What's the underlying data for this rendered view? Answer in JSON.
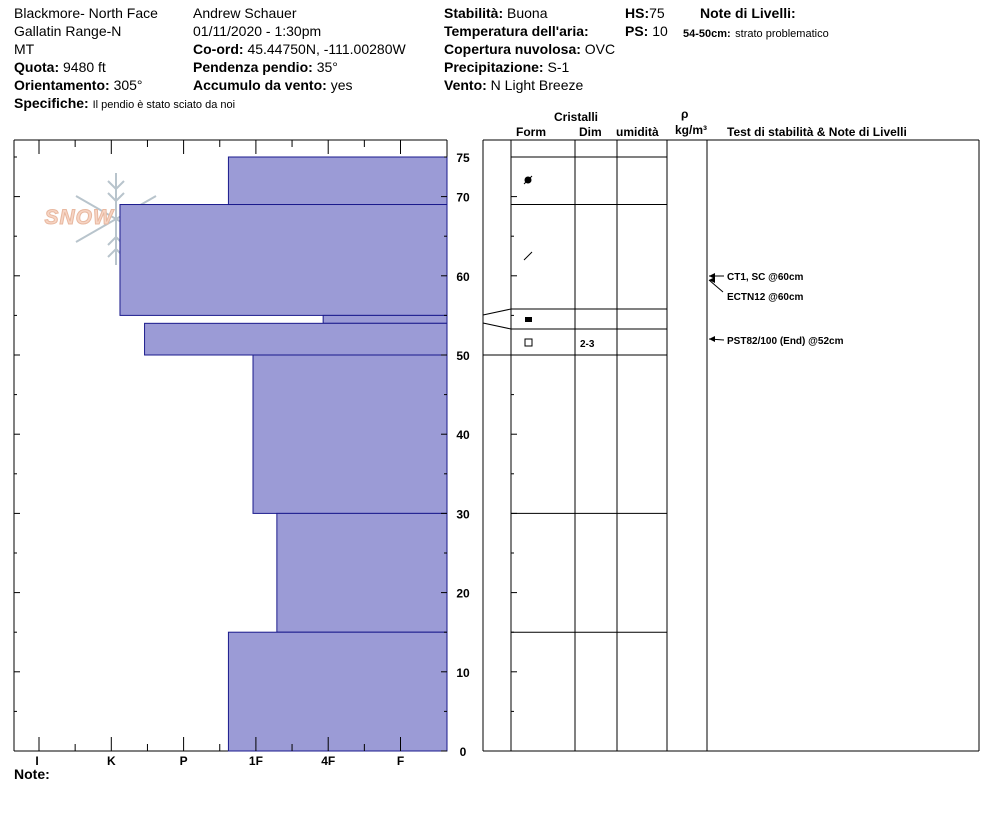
{
  "header": {
    "location": "Blackmore- North Face",
    "range": "Gallatin Range-N",
    "state": "MT",
    "elevation_label": "Quota:",
    "elevation_value": "9480 ft",
    "aspect_label": "Orientamento:",
    "aspect_value": "305°",
    "specifics_label": "Specifiche:",
    "specifics_value": "Il pendio è stato sciato da noi",
    "observer": "Andrew Schauer",
    "datetime": "01/11/2020 - 1:30pm",
    "coord_label": "Co-ord:",
    "coord_value": "45.44750N, -111.00280W",
    "slope_label": "Pendenza pendio:",
    "slope_value": "35°",
    "wind_loading_label": "Accumulo da vento:",
    "wind_loading_value": "yes",
    "stability_label": "Stabilità:",
    "stability_value": "Buona",
    "air_temp_label": "Temperatura dell'aria:",
    "cloud_label": "Copertura nuvolosa:",
    "cloud_value": "OVC",
    "precip_label": "Precipitazione:",
    "precip_value": "S-1",
    "wind_label": "Vento:",
    "wind_value": "N Light Breeze",
    "hs_label": "HS:",
    "hs_value": "75",
    "ps_label": "PS:",
    "ps_value": "10",
    "layer_notes_label": "Note di Livelli:",
    "layer_note_depth": "54-50cm:",
    "layer_note_text": "strato problematico"
  },
  "columns": {
    "crystals": "Cristalli",
    "form": "Form",
    "dim": "Dim",
    "moisture": "umidità",
    "density_symbol": "ρ",
    "density_unit": "kg/m³",
    "tests": "Test di stabilità & Note di Livelli"
  },
  "footer": {
    "notes_label": "Note:"
  },
  "watermark": {
    "text": "SNOW PILOT",
    "icon": "snowflake-icon"
  },
  "colors": {
    "bar_fill": "#9b9bd6",
    "bar_stroke": "#1a1a8c"
  },
  "chart_data": {
    "type": "bar",
    "orientation": "horizontal",
    "y_axis": {
      "label": "",
      "range": [
        0,
        75
      ],
      "ticks": [
        0,
        10,
        20,
        30,
        40,
        50,
        60,
        70,
        75
      ],
      "unit": "cm"
    },
    "x_axis": {
      "ticks": [
        "I",
        "K",
        "P",
        "1F",
        "4F",
        "F"
      ],
      "scale": "hardness"
    },
    "layers": [
      {
        "bottom": 69,
        "top": 75,
        "hardness": 2.62
      },
      {
        "bottom": 55,
        "top": 69,
        "hardness": 1.12
      },
      {
        "bottom": 54,
        "top": 55,
        "hardness": 3.93
      },
      {
        "bottom": 50,
        "top": 54,
        "hardness": 1.46
      },
      {
        "bottom": 30,
        "top": 50,
        "hardness": 2.96
      },
      {
        "bottom": 15,
        "top": 30,
        "hardness": 3.29
      },
      {
        "bottom": 0,
        "top": 15,
        "hardness": 2.62
      }
    ],
    "crystal_layers": [
      {
        "bottom": 69,
        "top": 75,
        "symbol": "graupel-icon",
        "dim": ""
      },
      {
        "bottom": 55.5,
        "top": 69,
        "symbol": "decomposed-icon",
        "dim": ""
      },
      {
        "bottom": 53,
        "top": 55.5,
        "symbol": "faceted-icon",
        "dim": ""
      },
      {
        "bottom": 50,
        "top": 53,
        "symbol": "depth-hoar-icon",
        "dim": "2-3"
      }
    ],
    "test_results": [
      {
        "depth": 60,
        "text": "CT1, SC @60cm"
      },
      {
        "depth": 60,
        "text": "ECTN12 @60cm"
      },
      {
        "depth": 52,
        "text": "PST82/100 (End) @52cm"
      }
    ]
  }
}
